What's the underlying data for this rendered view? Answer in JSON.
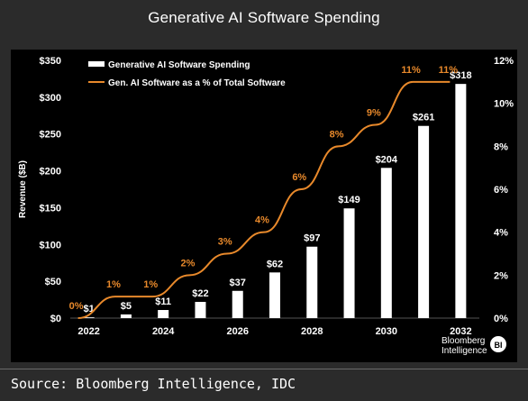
{
  "title": "Generative AI Software Spending",
  "source": "Source: Bloomberg Intelligence, IDC",
  "logo": {
    "text_line1": "Bloomberg",
    "text_line2": "Intelligence",
    "badge": "BI"
  },
  "colors": {
    "bar": "#ffffff",
    "line": "#e8892b",
    "line_label": "#e8892b",
    "background": "#000000",
    "frame": "#2b2b2b"
  },
  "chart_data": {
    "type": "bar",
    "categories": [
      "2022",
      "2023",
      "2024",
      "2025",
      "2026",
      "2027",
      "2028",
      "2029",
      "2030",
      "2031",
      "2032"
    ],
    "x_tick_labels": [
      "2022",
      "",
      "2024",
      "",
      "2026",
      "",
      "2028",
      "",
      "2030",
      "",
      "2032"
    ],
    "series": [
      {
        "name": "Generative AI Software Spending",
        "type": "bar",
        "axis": "left",
        "values": [
          1,
          5,
          11,
          22,
          37,
          62,
          97,
          149,
          204,
          261,
          318
        ],
        "labels": [
          "$1",
          "$5",
          "$11",
          "$22",
          "$37",
          "$62",
          "$97",
          "$149",
          "$204",
          "$261",
          "$318"
        ]
      },
      {
        "name": "Gen. AI Software as a % of Total Software",
        "type": "line",
        "axis": "right",
        "values": [
          0,
          1,
          1,
          2,
          3,
          4,
          6,
          8,
          9,
          11,
          11
        ],
        "labels": [
          "0%",
          "1%",
          "1%",
          "2%",
          "3%",
          "4%",
          "6%",
          "8%",
          "9%",
          "11%",
          "11%"
        ]
      }
    ],
    "ylabel": "Revenue ($B)",
    "ylim": [
      0,
      350
    ],
    "y_ticks": [
      "$0",
      "$50",
      "$100",
      "$150",
      "$200",
      "$250",
      "$300",
      "$350"
    ],
    "y2lim": [
      0,
      12
    ],
    "y2_ticks": [
      "0%",
      "2%",
      "4%",
      "6%",
      "8%",
      "10%",
      "12%"
    ],
    "legend_position": "top-left",
    "grid": false
  }
}
